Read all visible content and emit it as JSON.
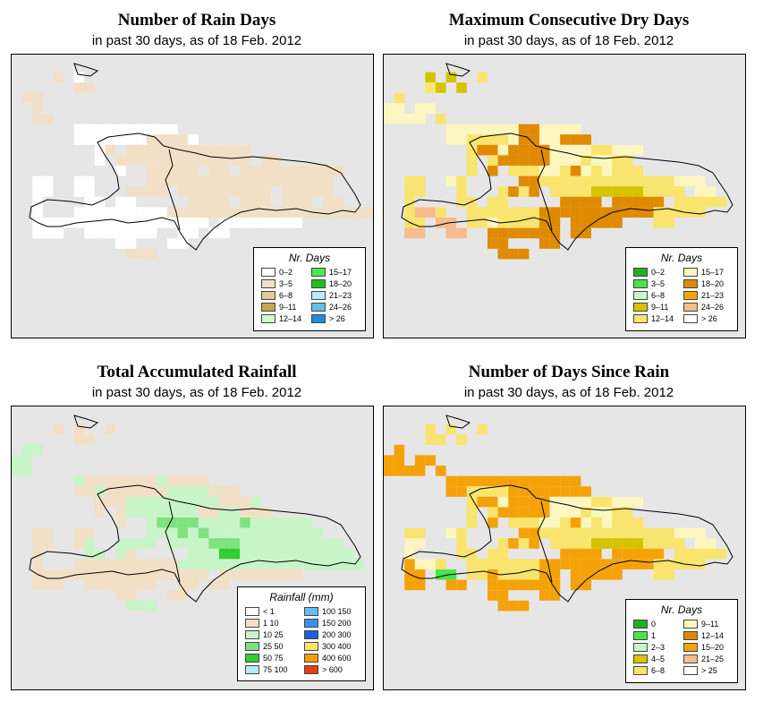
{
  "panels": [
    {
      "title": "Number of Rain Days",
      "subtitle": "in past 30 days, as of  18 Feb. 2012",
      "legend": {
        "title": "Nr. Days",
        "items": [
          {
            "label": "0–2",
            "color": "#ffffff"
          },
          {
            "label": "3–5",
            "color": "#f2e0c6"
          },
          {
            "label": "6–8",
            "color": "#e1c99a"
          },
          {
            "label": "9–11",
            "color": "#c8a44f"
          },
          {
            "label": "12–14",
            "color": "#ccfccc"
          },
          {
            "label": "15–17",
            "color": "#43ef43"
          },
          {
            "label": "18–20",
            "color": "#1fbf1f"
          },
          {
            "label": "21–23",
            "color": "#b6ecfc"
          },
          {
            "label": "24–26",
            "color": "#62bff2"
          },
          {
            "label": "> 26",
            "color": "#1d8ddc"
          }
        ]
      }
    },
    {
      "title": "Maximum Consecutive Dry Days",
      "subtitle": "in past 30 days, as of  18 Feb. 2012",
      "legend": {
        "title": "Nr. Days",
        "items": [
          {
            "label": "0–2",
            "color": "#19b419"
          },
          {
            "label": "3–5",
            "color": "#4ae44a"
          },
          {
            "label": "6–8",
            "color": "#c7f5c7"
          },
          {
            "label": "9–11",
            "color": "#d6c300"
          },
          {
            "label": "12–14",
            "color": "#f9e46e"
          },
          {
            "label": "15–17",
            "color": "#fdf6c0"
          },
          {
            "label": "18–20",
            "color": "#e08a00"
          },
          {
            "label": "21–23",
            "color": "#f5a208"
          },
          {
            "label": "24–26",
            "color": "#f8bc8a"
          },
          {
            "label": "> 26",
            "color": "#ffffff"
          }
        ]
      }
    },
    {
      "title": "Total Accumulated Rainfall",
      "subtitle": "in past 30 days, as of  18 Feb. 2012",
      "legend": {
        "title": "Rainfall (mm)",
        "items": [
          {
            "label": "< 1",
            "color": "#ffffff"
          },
          {
            "label": "1   10",
            "color": "#f2e0c6"
          },
          {
            "label": "10   25",
            "color": "#c7f5c7"
          },
          {
            "label": "25   50",
            "color": "#7ee27e"
          },
          {
            "label": "50   75",
            "color": "#2fcf2f"
          },
          {
            "label": "75   100",
            "color": "#b6ecfc"
          },
          {
            "label": "100   150",
            "color": "#62bff2"
          },
          {
            "label": "150   200",
            "color": "#3a8ff0"
          },
          {
            "label": "200   300",
            "color": "#1c5fd8"
          },
          {
            "label": "300   400",
            "color": "#fbe46a"
          },
          {
            "label": "400   600",
            "color": "#f59a08"
          },
          {
            "label": "> 600",
            "color": "#ee3a10"
          }
        ]
      }
    },
    {
      "title": "Number of Days Since Rain",
      "subtitle": "in past 30 days, as of  18 Feb. 2012",
      "legend": {
        "title": "Nr. Days",
        "items": [
          {
            "label": "0",
            "color": "#19b419"
          },
          {
            "label": "1",
            "color": "#4ae44a"
          },
          {
            "label": "2–3",
            "color": "#c7f5c7"
          },
          {
            "label": "4–5",
            "color": "#d6c300"
          },
          {
            "label": "6–8",
            "color": "#f9e46e"
          },
          {
            "label": "9–11",
            "color": "#fdf6c0"
          },
          {
            "label": "12–14",
            "color": "#e08a00"
          },
          {
            "label": "15–20",
            "color": "#f5a208"
          },
          {
            "label": "21–25",
            "color": "#f8bc8a"
          },
          {
            "label": "> 25",
            "color": "#ffffff"
          }
        ]
      }
    }
  ],
  "grids": [
    [
      "..........................",
      "....3.1.......................",
      "......33.......................",
      ".33............................",
      "..3.............................",
      "..33.............................",
      "......1111111111..................",
      "......111111133331................",
      "........13.333333333333..........",
      "........1.3333333333333.33........",
      "..........1..33333.33.3333333333..",
      "..11..11.....333333333333333333...",
      "..11..11...3333.333333333.33333...",
      "..1....11.11.....3333.333.333.33....",
      "..1...111111111333333333333333333333.",
      "..11111111111111111.11111111.......",
      "..111..1111111..11.11......",
      "..........11...11.......",
      "...........333.........",
      "..............................",
      "..............................",
      "..............................",
      "..............................",
      "..............................",
      "..............................",
      ".............................."
    ],
    [
      "..........................",
      "....4.4..5....................",
      "....54.4.......................",
      ".5.............................",
      "66.66...........................",
      "6666.5...........................",
      "......6666666776666...............",
      "......66555567766777..............",
      "........57767777666655666........",
      "........5.57777766656655..........",
      "........5.7.5556657656555.........",
      "..55..65.....775555555555555666...",
      "..55...5...5757.5555444445555.66...",
      "..5....55.55.....7777.77777.55555....",
      "..5885..55555557777777777755555.",
      "..55.88.556555577.77777...55.......",
      "..88..88..7777777.77......",
      "..........77...77.......",
      "...........777.........",
      "..............................",
      "..............................",
      "..............................",
      "..............................",
      "..............................",
      "..............................",
      ".............................."
    ],
    [
      "..........................",
      "....1.1..1....................",
      "......11.......................",
      ".22............................",
      "22..............................",
      "22...............................",
      "......2111111121111...............",
      "......1121111112222111............",
      "........1112222222221112..........",
      "........1.122222221122111.........",
      "..........1..2333322223222222.....",
      "..11..11.....22232322222222222....",
      "..11..12..2222.22223332222222222..",
      "..1....22.21.....2224422222222222.",
      "..1...1111111111222222222222222222.",
      "..11111111111111111.11111111.......",
      "..111..1111111..11.11......",
      "..........11...11.......",
      "...........222.........",
      "..............................",
      "..............................",
      "..............................",
      "..............................",
      "..............................",
      "..............................",
      ".............................."
    ],
    [
      "..........................",
      "....5.5..5....................",
      "....55.5.......................",
      ".7.............................",
      "77.77...........................",
      "7777.7...........................",
      "......7777777777777...............",
      "......77555577777777..............",
      "........57767777666655666........",
      "........5.57777766656655..........",
      "........5.7.5556657656555.........",
      "..55..65.....775555555555555666...",
      "..66...5...5757.5555444445555.66...",
      "..6....55.55.....7777.77777.55555....",
      "..7665..55555557777777777755555.",
      "..77.22.557555577.77777...55.......",
      "..77..77..7777777.77......",
      "..........77...77.......",
      "...........777.........",
      "..............................",
      "..............................",
      "..............................",
      "..............................",
      "..............................",
      "..............................",
      ".............................."
    ]
  ],
  "palettes": [
    {
      "1": "#ffffff",
      "3": "#f2e0c6",
      "6": "#e1c99a"
    },
    {
      "4": "#d6c300",
      "5": "#f9e46e",
      "6": "#fdf6c0",
      "7": "#e08a00",
      "8": "#f8bc8a"
    },
    {
      "1": "#f2e0c6",
      "2": "#c7f5c7",
      "3": "#7ee27e",
      "4": "#2fcf2f"
    },
    {
      "2": "#4ae44a",
      "4": "#d6c300",
      "5": "#f9e46e",
      "6": "#fdf6c0",
      "7": "#f5a208"
    }
  ]
}
